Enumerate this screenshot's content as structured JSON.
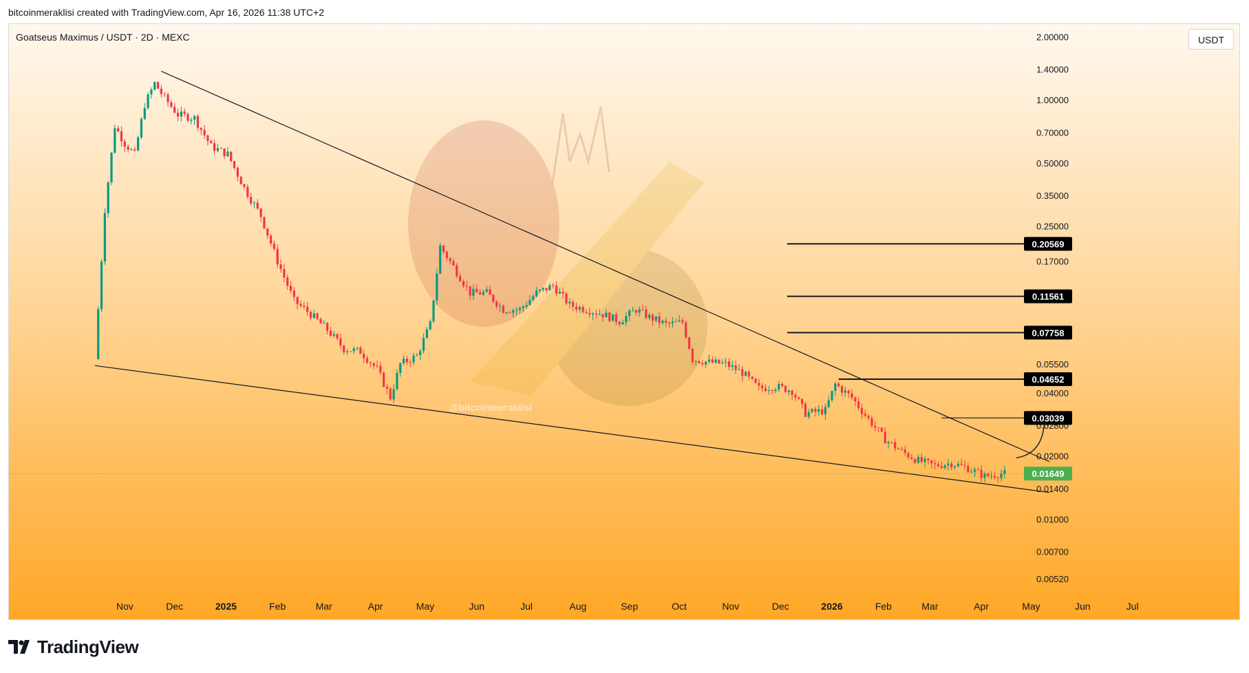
{
  "header": {
    "credit": "bitcoinmeraklisi created with TradingView.com, Apr 16, 2026 11:38 UTC+2"
  },
  "symbol": {
    "title": "Goatseus Maximus / USDT · 2D · MEXC"
  },
  "currency_button": "USDT",
  "watermark": "@bitcoinmeraklisi",
  "footer": {
    "brand": "TradingView"
  },
  "colors": {
    "up": "#089981",
    "down": "#f23645",
    "price_label": "#4caf50",
    "level_label": "#000000",
    "bg_top": "#fff8ee",
    "bg_bottom": "#ffa726"
  },
  "chart_data": {
    "type": "candlestick",
    "title": "Goatseus Maximus / USDT · 2D · MEXC",
    "y_scale": "log",
    "y_range": [
      0.0045,
      2.3
    ],
    "x_range": [
      "2024-10-07",
      "2026-07-31"
    ],
    "y_ticks": [
      "2.00000",
      "1.40000",
      "1.00000",
      "0.70000",
      "0.50000",
      "0.35000",
      "0.25000",
      "0.17000",
      "0.05500",
      "0.04000",
      "0.02800",
      "0.02000",
      "0.01400",
      "0.01000",
      "0.00700",
      "0.00520"
    ],
    "x_ticks": [
      "Nov",
      "Dec",
      "2025",
      "Feb",
      "Mar",
      "Apr",
      "May",
      "Jun",
      "Jul",
      "Aug",
      "Sep",
      "Oct",
      "Nov",
      "Dec",
      "2026",
      "Feb",
      "Mar",
      "Apr",
      "May",
      "Jun",
      "Jul"
    ],
    "last_price": "0.01649",
    "resistance_levels": [
      "0.20569",
      "0.11561",
      "0.07758",
      "0.04652",
      "0.03039"
    ],
    "wedge_upper": [
      [
        "2024-11-23",
        1.37
      ],
      [
        "2026-05-12",
        0.0188
      ]
    ],
    "wedge_lower": [
      [
        "2024-10-14",
        0.054
      ],
      [
        "2026-05-12",
        0.0134
      ]
    ],
    "projection_target": "0.03039",
    "price_path": [
      [
        "2024-10-16",
        0.058
      ],
      [
        "2024-10-22",
        0.3
      ],
      [
        "2024-10-28",
        0.75
      ],
      [
        "2024-11-03",
        0.62
      ],
      [
        "2024-11-09",
        0.55
      ],
      [
        "2024-11-15",
        0.95
      ],
      [
        "2024-11-21",
        1.2
      ],
      [
        "2024-11-27",
        1.02
      ],
      [
        "2024-12-05",
        0.85
      ],
      [
        "2024-12-15",
        0.82
      ],
      [
        "2024-12-25",
        0.6
      ],
      [
        "2025-01-04",
        0.55
      ],
      [
        "2025-01-14",
        0.38
      ],
      [
        "2025-01-24",
        0.28
      ],
      [
        "2025-02-03",
        0.17
      ],
      [
        "2025-02-13",
        0.11
      ],
      [
        "2025-02-23",
        0.095
      ],
      [
        "2025-03-05",
        0.08
      ],
      [
        "2025-03-15",
        0.065
      ],
      [
        "2025-03-25",
        0.063
      ],
      [
        "2025-04-04",
        0.052
      ],
      [
        "2025-04-12",
        0.038
      ],
      [
        "2025-04-18",
        0.055
      ],
      [
        "2025-04-28",
        0.06
      ],
      [
        "2025-05-06",
        0.085
      ],
      [
        "2025-05-12",
        0.2
      ],
      [
        "2025-05-20",
        0.16
      ],
      [
        "2025-05-30",
        0.12
      ],
      [
        "2025-06-09",
        0.12
      ],
      [
        "2025-06-19",
        0.1
      ],
      [
        "2025-06-29",
        0.1
      ],
      [
        "2025-07-09",
        0.12
      ],
      [
        "2025-07-19",
        0.13
      ],
      [
        "2025-07-29",
        0.105
      ],
      [
        "2025-08-08",
        0.1
      ],
      [
        "2025-08-18",
        0.095
      ],
      [
        "2025-08-28",
        0.088
      ],
      [
        "2025-09-07",
        0.1
      ],
      [
        "2025-09-15",
        0.092
      ],
      [
        "2025-09-25",
        0.085
      ],
      [
        "2025-10-05",
        0.087
      ],
      [
        "2025-10-11",
        0.058
      ],
      [
        "2025-10-21",
        0.056
      ],
      [
        "2025-10-31",
        0.055
      ],
      [
        "2025-11-10",
        0.05
      ],
      [
        "2025-11-20",
        0.042
      ],
      [
        "2025-11-30",
        0.043
      ],
      [
        "2025-12-10",
        0.041
      ],
      [
        "2025-12-18",
        0.032
      ],
      [
        "2025-12-30",
        0.033
      ],
      [
        "2026-01-05",
        0.044
      ],
      [
        "2026-01-15",
        0.038
      ],
      [
        "2026-01-25",
        0.03
      ],
      [
        "2026-02-04",
        0.024
      ],
      [
        "2026-02-14",
        0.021
      ],
      [
        "2026-02-24",
        0.019
      ],
      [
        "2026-03-06",
        0.018
      ],
      [
        "2026-03-16",
        0.0185
      ],
      [
        "2026-03-26",
        0.0175
      ],
      [
        "2026-04-05",
        0.016
      ],
      [
        "2026-04-15",
        0.0165
      ]
    ]
  }
}
